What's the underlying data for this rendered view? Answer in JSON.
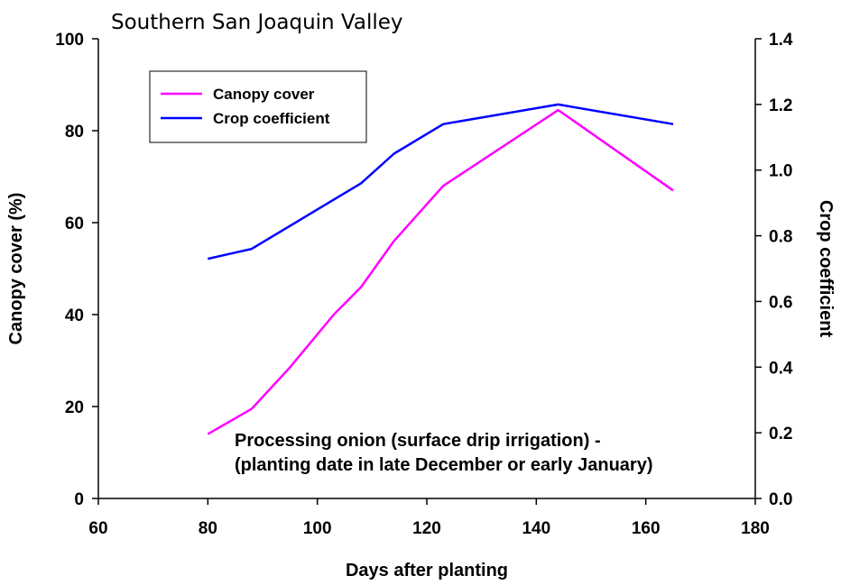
{
  "chart_data": {
    "type": "line",
    "title": "Southern San Joaquin Valley",
    "xlabel": "Days after planting",
    "ylabel": "Canopy cover (%)",
    "y2label": "Crop coefficient",
    "xlim": [
      60,
      180
    ],
    "ylim": [
      0,
      100
    ],
    "y2lim": [
      0,
      1.4
    ],
    "xticks": [
      "60",
      "80",
      "100",
      "120",
      "140",
      "160",
      "180"
    ],
    "yticks": [
      "0",
      "20",
      "40",
      "60",
      "80",
      "100"
    ],
    "y2ticks": [
      "0.0",
      "0.2",
      "0.4",
      "0.6",
      "0.8",
      "1.0",
      "1.2",
      "1.4"
    ],
    "grid": false,
    "legend_position": "top-left",
    "annotation": [
      "Processing onion (surface drip irrigation) -",
      "(planting date in late December or early January)"
    ],
    "series": [
      {
        "name": "Canopy cover",
        "axis": "left",
        "color": "#ff00ff",
        "x": [
          80,
          88,
          95,
          103,
          108,
          114,
          123,
          144,
          165
        ],
        "values": [
          14,
          19.5,
          28.5,
          40,
          46,
          56,
          68,
          84.5,
          67
        ]
      },
      {
        "name": "Crop coefficient",
        "axis": "right",
        "color": "#0000ff",
        "x": [
          80,
          88,
          108,
          114,
          123,
          144,
          165
        ],
        "values": [
          0.73,
          0.76,
          0.96,
          1.05,
          1.14,
          1.2,
          1.14
        ]
      }
    ]
  }
}
